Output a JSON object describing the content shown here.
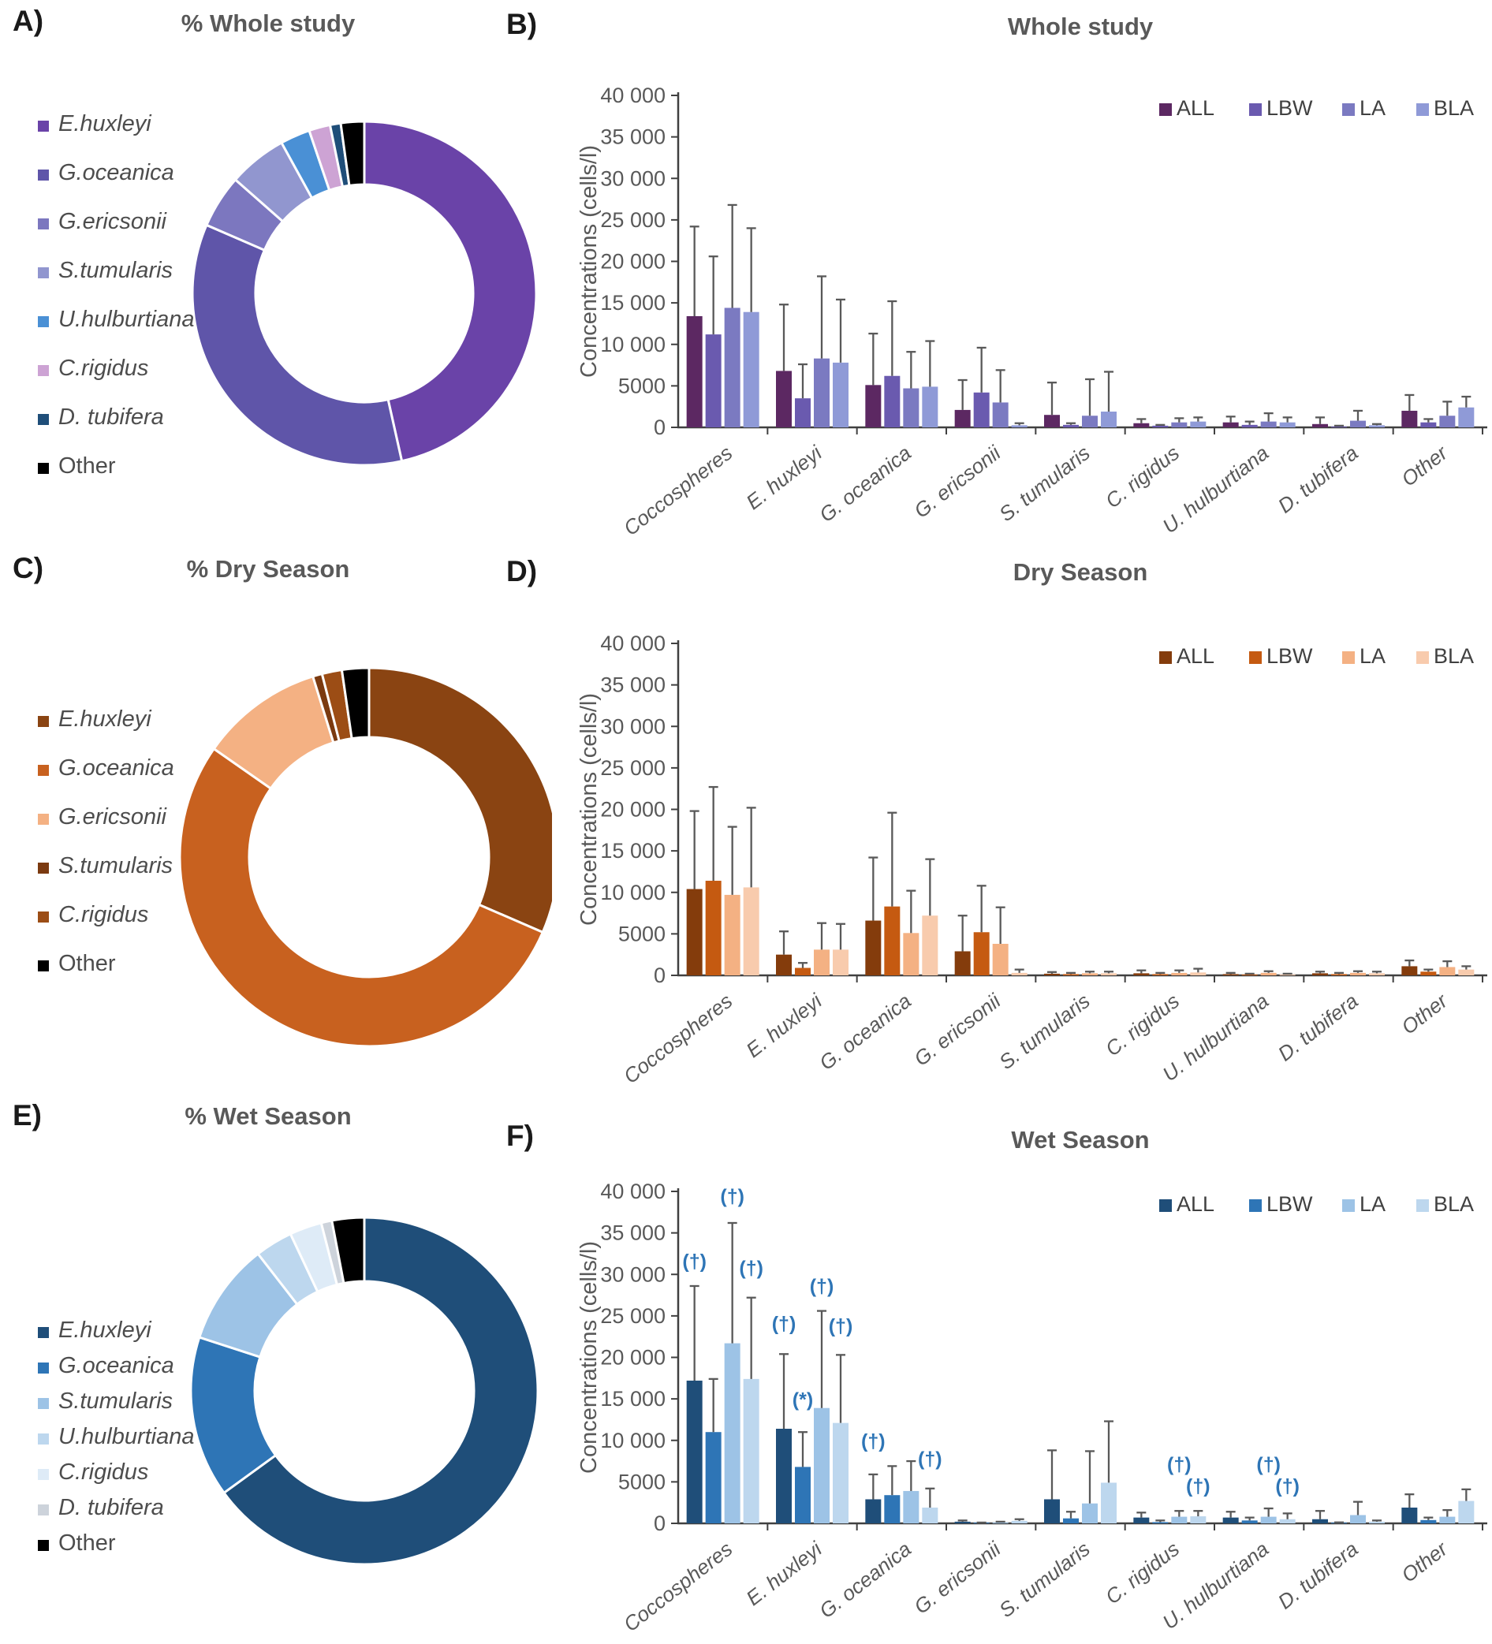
{
  "chart_data": [
    {
      "panel_letter": "A)",
      "title": "% Whole study",
      "type": "pie",
      "donut": true,
      "legend_position": "left",
      "slices": [
        {
          "label": "E.huxleyi",
          "pct": 46.5,
          "color": "#6A43A8",
          "italic": true
        },
        {
          "label": "G.oceanica",
          "pct": 35.0,
          "color": "#5F55A9",
          "italic": true
        },
        {
          "label": "G.ericsonii",
          "pct": 5.0,
          "color": "#7C77BF",
          "italic": true
        },
        {
          "label": "S.tumularis",
          "pct": 5.5,
          "color": "#9196CF",
          "italic": true
        },
        {
          "label": "U.hulburtiana",
          "pct": 2.8,
          "color": "#4A90D5",
          "italic": true
        },
        {
          "label": "C.rigidus",
          "pct": 2.0,
          "color": "#CDA3D4",
          "italic": true
        },
        {
          "label": "D. tubifera",
          "pct": 1.0,
          "color": "#1F4E79",
          "italic": true
        },
        {
          "label": "Other",
          "pct": 2.2,
          "color": "#000000",
          "italic": false
        }
      ]
    },
    {
      "panel_letter": "B)",
      "title": "Whole study",
      "type": "bar",
      "ylabel": "Concentrations (cells/l)",
      "ylim": [
        0,
        40000
      ],
      "ytick_labels": [
        "0",
        "5000",
        "10 000",
        "15 000",
        "20 000",
        "25 000",
        "30 000",
        "35 000",
        "40 000"
      ],
      "categories": [
        "Coccospheres",
        "E. huxleyi",
        "G. oceanica",
        "G. ericsonii",
        "S. tumularis",
        "C. rigidus",
        "U. hulburtiana",
        "D. tubifera",
        "Other"
      ],
      "series": [
        {
          "name": "ALL",
          "color": "#5C2862",
          "values": [
            13400,
            6800,
            5100,
            2100,
            1500,
            500,
            600,
            400,
            2000
          ],
          "errors_upper": [
            24200,
            14800,
            11300,
            5700,
            5400,
            1000,
            1300,
            1200,
            3900
          ]
        },
        {
          "name": "LBW",
          "color": "#6A5AAF",
          "values": [
            11200,
            3500,
            6200,
            4200,
            300,
            200,
            300,
            100,
            600
          ],
          "errors_upper": [
            20600,
            7600,
            15200,
            9600,
            500,
            300,
            700,
            200,
            1000
          ]
        },
        {
          "name": "LA",
          "color": "#7B7AC1",
          "values": [
            14400,
            8300,
            4700,
            3000,
            1400,
            600,
            700,
            800,
            1400
          ],
          "errors_upper": [
            26800,
            18200,
            9100,
            6900,
            5800,
            1100,
            1700,
            2000,
            3100
          ]
        },
        {
          "name": "BLA",
          "color": "#8F9AD7",
          "values": [
            13900,
            7800,
            4900,
            250,
            1900,
            700,
            600,
            250,
            2400
          ],
          "errors_upper": [
            24000,
            15400,
            10400,
            500,
            6700,
            1200,
            1200,
            400,
            3700
          ]
        }
      ],
      "annotations": []
    },
    {
      "panel_letter": "C)",
      "title": "% Dry Season",
      "type": "pie",
      "donut": true,
      "legend_position": "left",
      "slices": [
        {
          "label": "E.huxleyi",
          "pct": 31.5,
          "color": "#8A4412",
          "italic": true
        },
        {
          "label": "G.oceanica",
          "pct": 53.2,
          "color": "#C8611F",
          "italic": true
        },
        {
          "label": "G.ericsonii",
          "pct": 10.5,
          "color": "#F4B183",
          "italic": true
        },
        {
          "label": "S.tumularis",
          "pct": 0.8,
          "color": "#7B3A10",
          "italic": true
        },
        {
          "label": "C.rigidus",
          "pct": 1.7,
          "color": "#9C4D15",
          "italic": true
        },
        {
          "label": "Other",
          "pct": 2.3,
          "color": "#000000",
          "italic": false
        }
      ]
    },
    {
      "panel_letter": "D)",
      "title": "Dry Season",
      "type": "bar",
      "ylabel": "Concentrations (cells/l)",
      "ylim": [
        0,
        40000
      ],
      "ytick_labels": [
        "0",
        "5000",
        "10 000",
        "15 000",
        "20 000",
        "25 000",
        "30 000",
        "35 000",
        "40 000"
      ],
      "categories": [
        "Coccospheres",
        "E. huxleyi",
        "G. oceanica",
        "G. ericsonii",
        "S. tumularis",
        "C. rigidus",
        "U. hulburtiana",
        "D. tubifera",
        "Other"
      ],
      "series": [
        {
          "name": "ALL",
          "color": "#843C0C",
          "values": [
            10400,
            2500,
            6600,
            2900,
            200,
            250,
            150,
            250,
            1100
          ],
          "errors_upper": [
            19800,
            5300,
            14200,
            7200,
            400,
            600,
            300,
            450,
            1800
          ]
        },
        {
          "name": "LBW",
          "color": "#C55A11",
          "values": [
            11400,
            900,
            8300,
            5200,
            150,
            150,
            100,
            150,
            450
          ],
          "errors_upper": [
            22700,
            1500,
            19600,
            10800,
            300,
            300,
            200,
            300,
            700
          ]
        },
        {
          "name": "LA",
          "color": "#F4B183",
          "values": [
            9700,
            3100,
            5100,
            3800,
            250,
            300,
            300,
            300,
            1000
          ],
          "errors_upper": [
            17900,
            6300,
            10200,
            8200,
            450,
            600,
            500,
            500,
            1700
          ]
        },
        {
          "name": "BLA",
          "color": "#F8CBAD",
          "values": [
            10600,
            3100,
            7200,
            300,
            250,
            350,
            100,
            250,
            700
          ],
          "errors_upper": [
            20200,
            6200,
            14000,
            700,
            450,
            800,
            200,
            450,
            1100
          ]
        }
      ],
      "annotations": []
    },
    {
      "panel_letter": "E)",
      "title": "% Wet Season",
      "type": "pie",
      "donut": true,
      "legend_position": "left",
      "slices": [
        {
          "label": "E.huxleyi",
          "pct": 65.0,
          "color": "#1F4E79",
          "italic": true
        },
        {
          "label": "G.oceanica",
          "pct": 15.0,
          "color": "#2E75B6",
          "italic": true
        },
        {
          "label": "S.tumularis",
          "pct": 9.5,
          "color": "#9DC3E6",
          "italic": true
        },
        {
          "label": "U.hulburtiana",
          "pct": 3.5,
          "color": "#BDD7EE",
          "italic": true
        },
        {
          "label": "C.rigidus",
          "pct": 3.0,
          "color": "#DEEBF7",
          "italic": true
        },
        {
          "label": "D. tubifera",
          "pct": 1.0,
          "color": "#CDD3DB",
          "italic": true
        },
        {
          "label": "Other",
          "pct": 3.0,
          "color": "#000000",
          "italic": false
        }
      ]
    },
    {
      "panel_letter": "F)",
      "title": "Wet Season",
      "type": "bar",
      "ylabel": "Concentrations (cells/l)",
      "ylim": [
        0,
        40000
      ],
      "ytick_labels": [
        "0",
        "5000",
        "10 000",
        "15 000",
        "20 000",
        "25 000",
        "30 000",
        "35 000",
        "40 000"
      ],
      "categories": [
        "Coccospheres",
        "E. huxleyi",
        "G. oceanica",
        "G. ericsonii",
        "S. tumularis",
        "C. rigidus",
        "U. hulburtiana",
        "D. tubifera",
        "Other"
      ],
      "series": [
        {
          "name": "ALL",
          "color": "#1F4E79",
          "values": [
            17200,
            11400,
            2900,
            200,
            2900,
            700,
            700,
            500,
            1900
          ],
          "errors_upper": [
            28600,
            20400,
            5900,
            350,
            8800,
            1300,
            1400,
            1500,
            3500
          ]
        },
        {
          "name": "LBW",
          "color": "#2E75B6",
          "values": [
            11000,
            6800,
            3400,
            50,
            600,
            150,
            350,
            60,
            400
          ],
          "errors_upper": [
            17400,
            11000,
            6900,
            100,
            1400,
            350,
            700,
            120,
            700
          ]
        },
        {
          "name": "LA",
          "color": "#9DC3E6",
          "values": [
            21700,
            13900,
            3900,
            100,
            2400,
            800,
            800,
            1000,
            800
          ],
          "errors_upper": [
            36200,
            25600,
            7500,
            200,
            8700,
            1500,
            1800,
            2600,
            1600
          ]
        },
        {
          "name": "BLA",
          "color": "#BDD7EE",
          "values": [
            17400,
            12100,
            1900,
            300,
            4900,
            850,
            500,
            200,
            2700
          ],
          "errors_upper": [
            27200,
            20300,
            4200,
            500,
            12300,
            1500,
            1200,
            350,
            4100
          ]
        }
      ],
      "annotation_color": "#2E75B6",
      "annotations": [
        {
          "cat": 0,
          "series": 0,
          "text": "(†)",
          "y": 30800
        },
        {
          "cat": 0,
          "series": 2,
          "text": "(†)",
          "y": 38600
        },
        {
          "cat": 0,
          "series": 3,
          "text": "(†)",
          "y": 30000
        },
        {
          "cat": 1,
          "series": 0,
          "text": "(†)",
          "y": 23300
        },
        {
          "cat": 1,
          "series": 1,
          "text": "(*)",
          "y": 14100
        },
        {
          "cat": 1,
          "series": 2,
          "text": "(†)",
          "y": 27800
        },
        {
          "cat": 1,
          "series": 3,
          "text": "(†)",
          "y": 23000
        },
        {
          "cat": 2,
          "series": 0,
          "text": "(†)",
          "y": 9100
        },
        {
          "cat": 2,
          "series": 3,
          "text": "(†)",
          "y": 7000
        },
        {
          "cat": 5,
          "series": 2,
          "text": "(†)",
          "y": 6300
        },
        {
          "cat": 5,
          "series": 3,
          "text": "(†)",
          "y": 3700
        },
        {
          "cat": 6,
          "series": 2,
          "text": "(†)",
          "y": 6300
        },
        {
          "cat": 6,
          "series": 3,
          "text": "(†)",
          "y": 3700
        }
      ]
    }
  ]
}
